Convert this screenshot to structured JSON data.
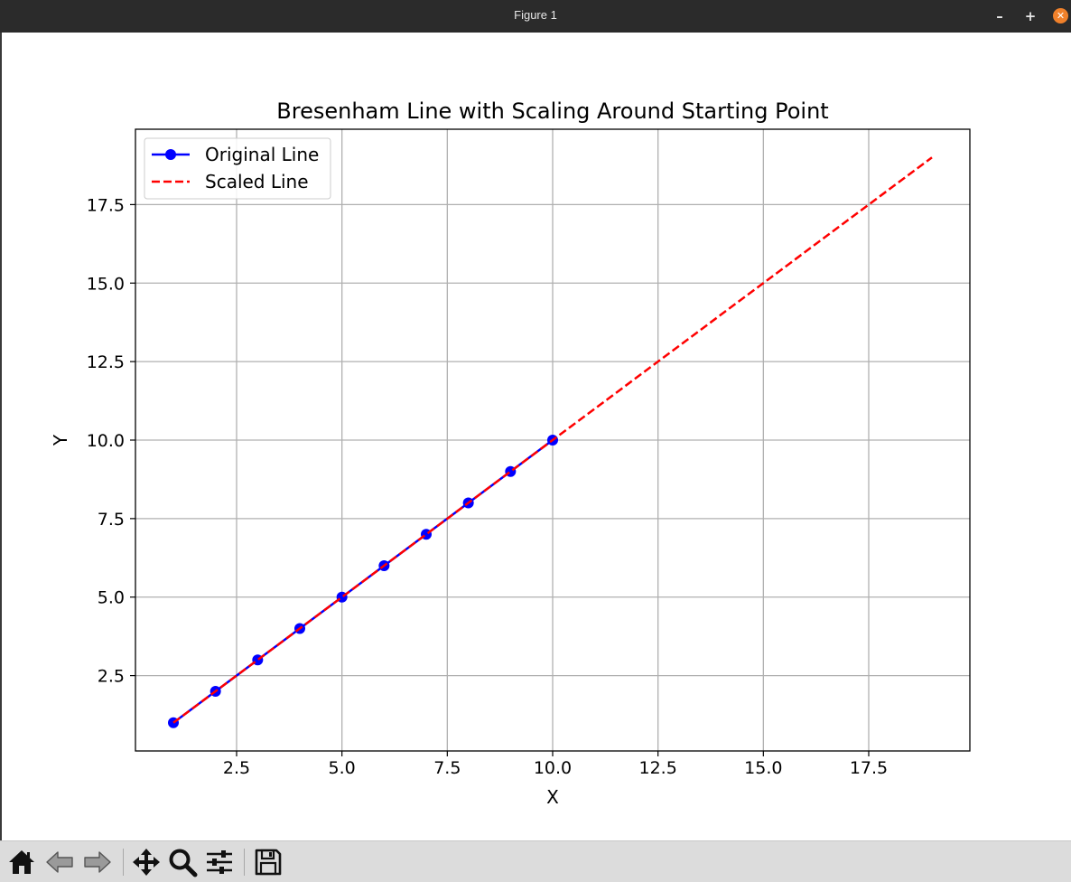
{
  "window": {
    "title": "Figure 1",
    "minimize_glyph": "–",
    "maximize_glyph": "+",
    "close_glyph": "✕"
  },
  "toolbar": {
    "buttons": [
      {
        "name": "home-button",
        "icon": "home-icon"
      },
      {
        "name": "back-button",
        "icon": "back-arrow-icon"
      },
      {
        "name": "forward-button",
        "icon": "forward-arrow-icon"
      },
      {
        "name": "pan-button",
        "icon": "move-icon"
      },
      {
        "name": "zoom-button",
        "icon": "magnifier-icon"
      },
      {
        "name": "configure-subplots-button",
        "icon": "sliders-icon"
      },
      {
        "name": "save-button",
        "icon": "floppy-disk-icon"
      }
    ]
  },
  "chart_data": {
    "type": "line",
    "title": "Bresenham Line with Scaling Around Starting Point",
    "xlabel": "X",
    "ylabel": "Y",
    "xlim": [
      0.1,
      19.9
    ],
    "ylim": [
      0.1,
      19.9
    ],
    "xticks": [
      2.5,
      5.0,
      7.5,
      10.0,
      12.5,
      15.0,
      17.5
    ],
    "yticks": [
      2.5,
      5.0,
      7.5,
      10.0,
      12.5,
      15.0,
      17.5
    ],
    "grid": true,
    "legend_position": "upper-left",
    "series": [
      {
        "name": "Original Line",
        "color": "#0000ff",
        "style": "solid",
        "marker": "circle",
        "x": [
          1,
          2,
          3,
          4,
          5,
          6,
          7,
          8,
          9,
          10
        ],
        "y": [
          1,
          2,
          3,
          4,
          5,
          6,
          7,
          8,
          9,
          10
        ]
      },
      {
        "name": "Scaled Line",
        "color": "#ff0000",
        "style": "dashed",
        "marker": "none",
        "x": [
          1,
          19
        ],
        "y": [
          1,
          19
        ]
      }
    ]
  }
}
